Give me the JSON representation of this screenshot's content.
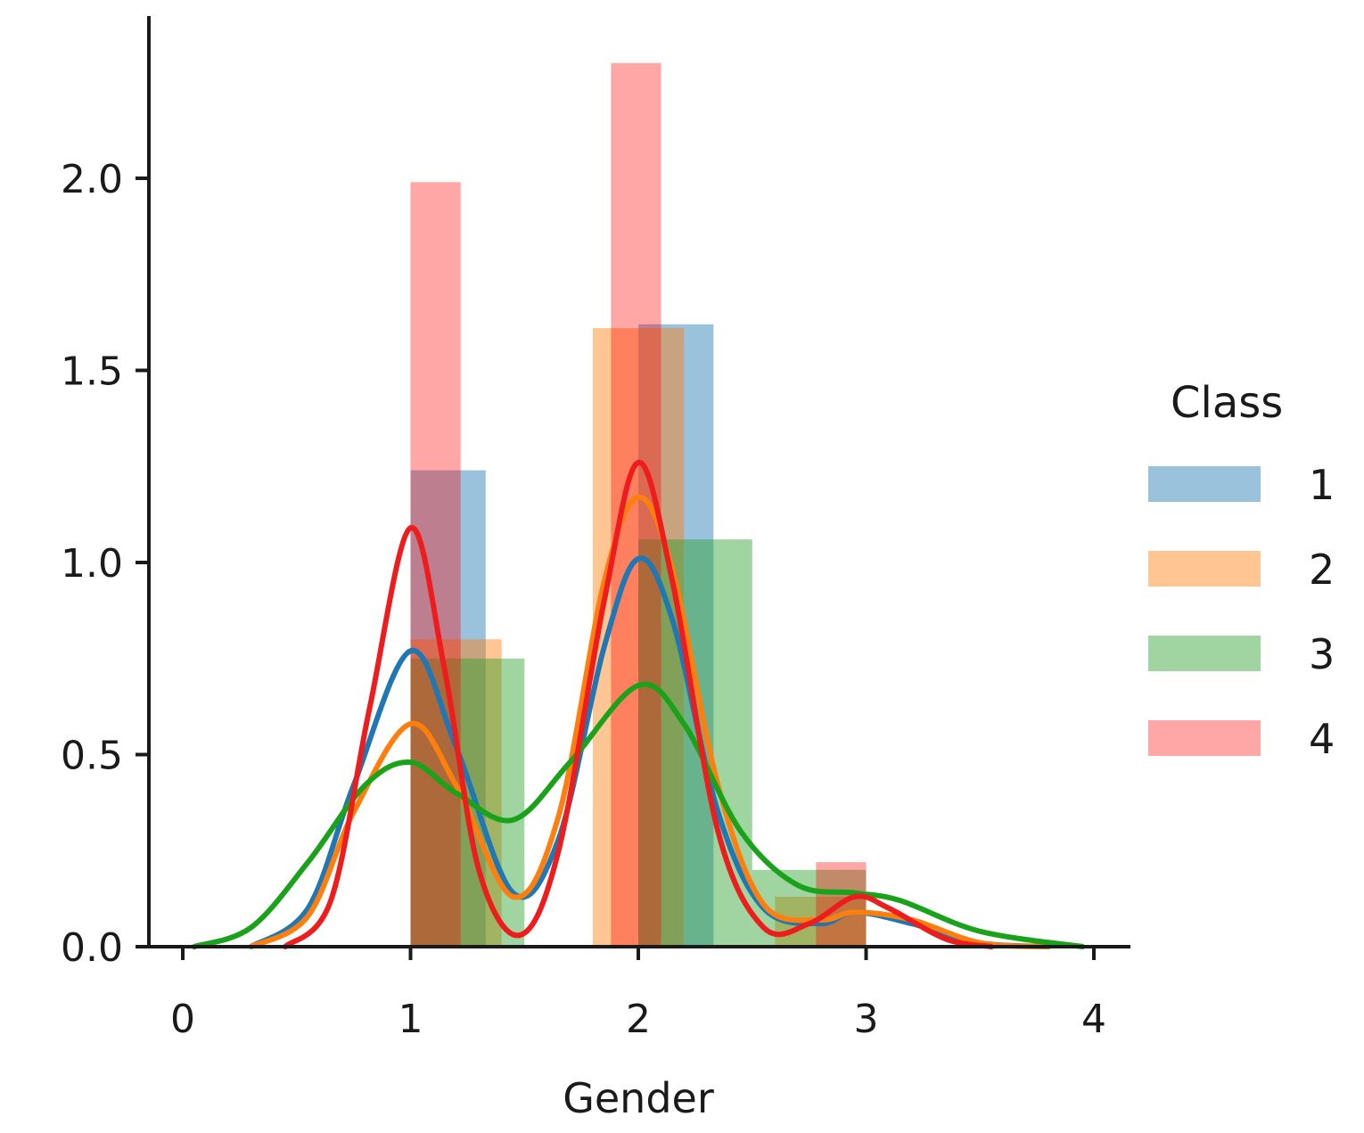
{
  "chart_data": {
    "type": "bar",
    "subtype": "histogram-with-kde",
    "title": "",
    "xlabel": "Gender",
    "ylabel": "",
    "xlim": [
      0,
      4
    ],
    "ylim": [
      0,
      2.35
    ],
    "xticks": [
      "0",
      "1",
      "2",
      "3",
      "4"
    ],
    "yticks": [
      "0.0",
      "0.5",
      "1.0",
      "1.5",
      "2.0"
    ],
    "legend": {
      "title": "Class",
      "placement": "right"
    },
    "series": [
      {
        "name": "1",
        "color": "#1f77b4",
        "bars": [
          {
            "x0": 1.0,
            "x1": 1.33,
            "height": 1.24
          },
          {
            "x0": 2.0,
            "x1": 2.33,
            "height": 1.62
          }
        ],
        "kde": [
          [
            0.3,
            0.0
          ],
          [
            0.55,
            0.1
          ],
          [
            0.75,
            0.42
          ],
          [
            1.0,
            0.77
          ],
          [
            1.2,
            0.52
          ],
          [
            1.45,
            0.14
          ],
          [
            1.65,
            0.28
          ],
          [
            1.85,
            0.78
          ],
          [
            2.0,
            1.01
          ],
          [
            2.15,
            0.85
          ],
          [
            2.35,
            0.35
          ],
          [
            2.55,
            0.1
          ],
          [
            2.8,
            0.06
          ],
          [
            2.95,
            0.09
          ],
          [
            3.2,
            0.06
          ],
          [
            3.5,
            0.01
          ],
          [
            3.8,
            0.0
          ]
        ]
      },
      {
        "name": "2",
        "color": "#ff7f0e",
        "bars": [
          {
            "x0": 1.0,
            "x1": 1.4,
            "height": 0.8
          },
          {
            "x0": 1.8,
            "x1": 2.2,
            "height": 1.61
          },
          {
            "x0": 2.6,
            "x1": 3.0,
            "height": 0.13
          }
        ],
        "kde": [
          [
            0.3,
            0.0
          ],
          [
            0.55,
            0.08
          ],
          [
            0.75,
            0.35
          ],
          [
            1.0,
            0.58
          ],
          [
            1.2,
            0.42
          ],
          [
            1.45,
            0.13
          ],
          [
            1.65,
            0.34
          ],
          [
            1.85,
            0.95
          ],
          [
            2.0,
            1.17
          ],
          [
            2.15,
            0.98
          ],
          [
            2.35,
            0.42
          ],
          [
            2.55,
            0.11
          ],
          [
            2.8,
            0.07
          ],
          [
            2.95,
            0.09
          ],
          [
            3.2,
            0.07
          ],
          [
            3.5,
            0.01
          ],
          [
            3.8,
            0.0
          ]
        ]
      },
      {
        "name": "3",
        "color": "#2ca02c",
        "bars": [
          {
            "x0": 1.0,
            "x1": 1.5,
            "height": 0.75
          },
          {
            "x0": 2.0,
            "x1": 2.5,
            "height": 1.06
          },
          {
            "x0": 2.5,
            "x1": 3.0,
            "height": 0.2
          }
        ],
        "kde": [
          [
            0.05,
            0.0
          ],
          [
            0.3,
            0.05
          ],
          [
            0.55,
            0.22
          ],
          [
            0.8,
            0.42
          ],
          [
            1.0,
            0.48
          ],
          [
            1.2,
            0.4
          ],
          [
            1.45,
            0.33
          ],
          [
            1.7,
            0.48
          ],
          [
            2.0,
            0.68
          ],
          [
            2.2,
            0.58
          ],
          [
            2.45,
            0.3
          ],
          [
            2.7,
            0.16
          ],
          [
            2.95,
            0.14
          ],
          [
            3.15,
            0.12
          ],
          [
            3.5,
            0.04
          ],
          [
            3.95,
            0.0
          ]
        ]
      },
      {
        "name": "4",
        "color": "#ff0000",
        "bars": [
          {
            "x0": 1.0,
            "x1": 1.22,
            "height": 1.99
          },
          {
            "x0": 1.88,
            "x1": 2.1,
            "height": 2.3
          },
          {
            "x0": 2.78,
            "x1": 3.0,
            "height": 0.22
          }
        ],
        "kde": [
          [
            0.45,
            0.0
          ],
          [
            0.65,
            0.12
          ],
          [
            0.82,
            0.62
          ],
          [
            1.0,
            1.09
          ],
          [
            1.15,
            0.72
          ],
          [
            1.3,
            0.2
          ],
          [
            1.48,
            0.03
          ],
          [
            1.65,
            0.25
          ],
          [
            1.85,
            0.9
          ],
          [
            2.0,
            1.26
          ],
          [
            2.15,
            0.95
          ],
          [
            2.35,
            0.3
          ],
          [
            2.55,
            0.05
          ],
          [
            2.75,
            0.06
          ],
          [
            2.95,
            0.13
          ],
          [
            3.1,
            0.1
          ],
          [
            3.35,
            0.02
          ],
          [
            3.55,
            0.0
          ]
        ]
      }
    ]
  }
}
